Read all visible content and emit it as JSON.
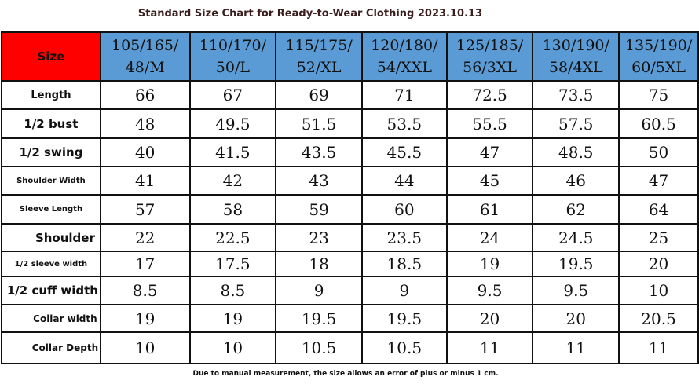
{
  "title": "Standard Size Chart for Ready-to-Wear Clothing 2023.10.13",
  "header": {
    "label": "Size",
    "sizes": [
      {
        "line1": "105/165/",
        "line2": "48/M"
      },
      {
        "line1": "110/170/",
        "line2": "50/L"
      },
      {
        "line1": "115/175/",
        "line2": "52/XL"
      },
      {
        "line1": "120/180/",
        "line2": "54/XXL"
      },
      {
        "line1": "125/185/",
        "line2": "56/3XL"
      },
      {
        "line1": "130/190/",
        "line2": "58/4XL"
      },
      {
        "line1": "135/190/",
        "line2": "60/5XL"
      }
    ]
  },
  "rows": [
    {
      "label": "Length",
      "values": [
        "66",
        "67",
        "69",
        "71",
        "72.5",
        "73.5",
        "75"
      ]
    },
    {
      "label": "1/2 bust",
      "values": [
        "48",
        "49.5",
        "51.5",
        "53.5",
        "55.5",
        "57.5",
        "60.5"
      ]
    },
    {
      "label": "1/2 swing",
      "values": [
        "40",
        "41.5",
        "43.5",
        "45.5",
        "47",
        "48.5",
        "50"
      ]
    },
    {
      "label": "Shoulder Width",
      "values": [
        "41",
        "42",
        "43",
        "44",
        "45",
        "46",
        "47"
      ]
    },
    {
      "label": "Sleeve Length",
      "values": [
        "57",
        "58",
        "59",
        "60",
        "61",
        "62",
        "64"
      ]
    },
    {
      "label": "Shoulder",
      "values": [
        "22",
        "22.5",
        "23",
        "23.5",
        "24",
        "24.5",
        "25"
      ]
    },
    {
      "label": "1/2 sleeve width",
      "values": [
        "17",
        "17.5",
        "18",
        "18.5",
        "19",
        "19.5",
        "20"
      ]
    },
    {
      "label": "1/2 cuff width",
      "values": [
        "8.5",
        "8.5",
        "9",
        "9",
        "9.5",
        "9.5",
        "10"
      ]
    },
    {
      "label": "Collar width",
      "values": [
        "19",
        "19",
        "19.5",
        "19.5",
        "20",
        "20",
        "20.5"
      ]
    },
    {
      "label": "Collar Depth",
      "values": [
        "10",
        "10",
        "10.5",
        "10.5",
        "11",
        "11",
        "11"
      ]
    }
  ],
  "footnote": "Due to manual measurement, the size allows an error of plus or minus 1 cm."
}
